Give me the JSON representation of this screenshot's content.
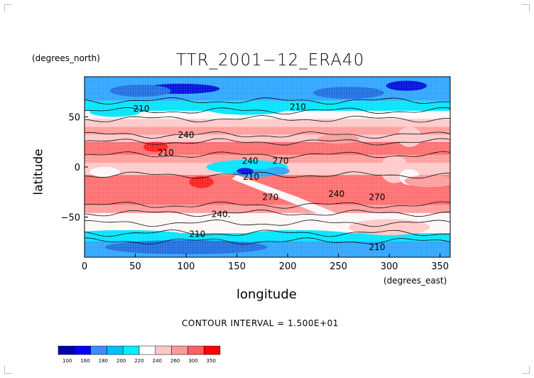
{
  "chart_data": {
    "type": "heatmap",
    "title": "TTR_2001−12_ERA40",
    "xlabel": "longitude",
    "ylabel": "latitude",
    "x_units": "(degrees_east)",
    "y_units": "(degrees_north)",
    "xlim": [
      0,
      360
    ],
    "ylim": [
      -90,
      90
    ],
    "x_ticks": [
      "0",
      "50",
      "100",
      "150",
      "200",
      "250",
      "300",
      "350"
    ],
    "y_ticks": [
      "50",
      "0",
      "−50"
    ],
    "contour_labels": [
      {
        "text": "210",
        "x": 48,
        "y": 58
      },
      {
        "text": "210",
        "x": 202,
        "y": 60
      },
      {
        "text": "240",
        "x": 92,
        "y": 32
      },
      {
        "text": "210",
        "x": 72,
        "y": 14
      },
      {
        "text": "240",
        "x": 155,
        "y": 6
      },
      {
        "text": "270",
        "x": 185,
        "y": 6
      },
      {
        "text": "270",
        "x": 175,
        "y": -30
      },
      {
        "text": "240",
        "x": 240,
        "y": -27
      },
      {
        "text": "270",
        "x": 280,
        "y": -30
      },
      {
        "text": "240.",
        "x": 125,
        "y": -47
      },
      {
        "text": "210",
        "x": 103,
        "y": -67
      },
      {
        "text": "210",
        "x": 280,
        "y": -80
      },
      {
        "text": "210",
        "x": 156,
        "y": -10
      }
    ],
    "contour_interval": "CONTOUR INTERVAL = 1.500E+01",
    "colorbar": {
      "levels": [
        "100",
        "160",
        "180",
        "200",
        "220",
        "240",
        "260",
        "300",
        "350"
      ],
      "colors": [
        "#0000a8",
        "#0000ff",
        "#3c8cff",
        "#00bfff",
        "#00f0ff",
        "#ffffff",
        "#ffc8c8",
        "#ff9a9a",
        "#ff6060",
        "#ff0000"
      ]
    },
    "band_colors": {
      "polar_dark": "#1f6fe0",
      "cold_blue": "#2fa6ff",
      "cyan": "#00e5ff",
      "white": "#fdf7f7",
      "light_pink": "#ffc9c9",
      "pink": "#ff9d9d",
      "salmon": "#ff6f6f",
      "red": "#ff2020",
      "deep_blue": "#0010d8"
    }
  }
}
